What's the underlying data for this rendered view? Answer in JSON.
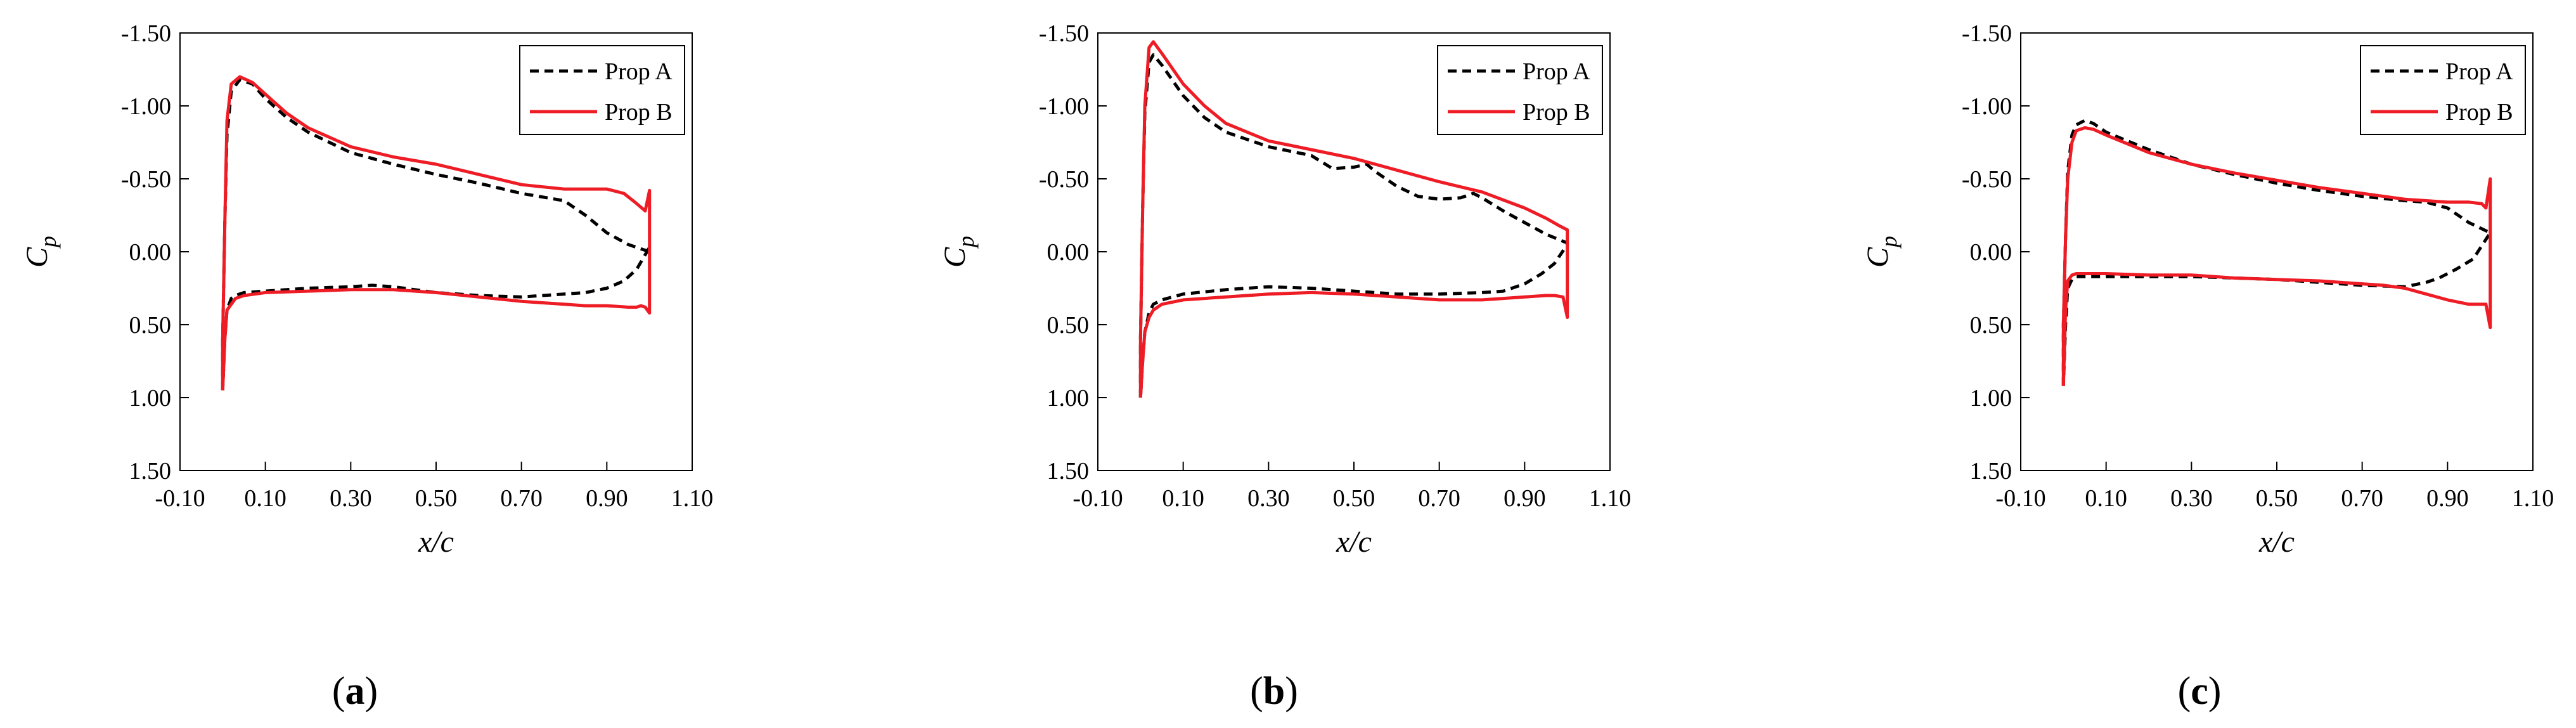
{
  "figure": {
    "series_colors": {
      "Prop A": "#000000",
      "Prop B": "#ee1c25"
    },
    "panel_labels": [
      "(a)",
      "(b)",
      "(c)"
    ]
  },
  "chart_data": [
    {
      "type": "line",
      "panel_label": "(a)",
      "xlabel": "x/c",
      "ylabel": "C_p",
      "ylabel_main": "C",
      "ylabel_sub": "p",
      "xlim": [
        -0.1,
        1.1
      ],
      "ylim": [
        1.5,
        -1.5
      ],
      "y_inverted": true,
      "x_ticks": [
        "-0.10",
        "0.10",
        "0.30",
        "0.50",
        "0.70",
        "0.90",
        "1.10"
      ],
      "x_tick_values": [
        -0.1,
        0.1,
        0.3,
        0.5,
        0.7,
        0.9,
        1.1
      ],
      "y_ticks": [
        "-1.50",
        "-1.00",
        "-0.50",
        "0.00",
        "0.50",
        "1.00",
        "1.50"
      ],
      "y_tick_values": [
        -1.5,
        -1.0,
        -0.5,
        0.0,
        0.5,
        1.0,
        1.5
      ],
      "legend_position": "top-right",
      "series": [
        {
          "name": "Prop A",
          "style": "dashed",
          "x": [
            0.0,
            0.0,
            0.005,
            0.01,
            0.02,
            0.04,
            0.07,
            0.1,
            0.15,
            0.2,
            0.3,
            0.4,
            0.5,
            0.6,
            0.7,
            0.8,
            0.85,
            0.9,
            0.95,
            1.0,
            1.0,
            0.97,
            0.94,
            0.9,
            0.85,
            0.8,
            0.7,
            0.6,
            0.5,
            0.4,
            0.35,
            0.3,
            0.2,
            0.15,
            0.1,
            0.05,
            0.03,
            0.02,
            0.01,
            0.005,
            0.0
          ],
          "y": [
            0.95,
            0.6,
            -0.2,
            -0.8,
            -1.1,
            -1.18,
            -1.15,
            -1.05,
            -0.92,
            -0.82,
            -0.68,
            -0.6,
            -0.53,
            -0.47,
            -0.4,
            -0.35,
            -0.25,
            -0.13,
            -0.05,
            0.0,
            -0.03,
            0.12,
            0.2,
            0.25,
            0.28,
            0.29,
            0.31,
            0.3,
            0.28,
            0.24,
            0.23,
            0.24,
            0.25,
            0.26,
            0.27,
            0.28,
            0.3,
            0.32,
            0.4,
            0.6,
            0.95
          ]
        },
        {
          "name": "Prop B",
          "style": "solid",
          "x": [
            0.0,
            0.0,
            0.005,
            0.01,
            0.02,
            0.04,
            0.07,
            0.1,
            0.15,
            0.2,
            0.3,
            0.4,
            0.5,
            0.6,
            0.7,
            0.8,
            0.85,
            0.9,
            0.94,
            0.97,
            0.99,
            1.0,
            1.0,
            0.99,
            0.98,
            0.97,
            0.95,
            0.9,
            0.85,
            0.8,
            0.7,
            0.6,
            0.5,
            0.4,
            0.3,
            0.2,
            0.1,
            0.05,
            0.03,
            0.01,
            0.005,
            0.0
          ],
          "y": [
            0.95,
            0.6,
            -0.2,
            -0.9,
            -1.15,
            -1.2,
            -1.16,
            -1.08,
            -0.95,
            -0.85,
            -0.72,
            -0.65,
            -0.6,
            -0.53,
            -0.46,
            -0.43,
            -0.43,
            -0.43,
            -0.4,
            -0.33,
            -0.28,
            -0.42,
            0.42,
            0.38,
            0.37,
            0.38,
            0.38,
            0.37,
            0.37,
            0.36,
            0.34,
            0.31,
            0.28,
            0.26,
            0.26,
            0.27,
            0.28,
            0.3,
            0.32,
            0.4,
            0.6,
            0.95
          ]
        }
      ]
    },
    {
      "type": "line",
      "panel_label": "(b)",
      "xlabel": "x/c",
      "ylabel": "C_p",
      "ylabel_main": "C",
      "ylabel_sub": "p",
      "xlim": [
        -0.1,
        1.1
      ],
      "ylim": [
        1.5,
        -1.5
      ],
      "y_inverted": true,
      "x_ticks": [
        "-0.10",
        "0.10",
        "0.30",
        "0.50",
        "0.70",
        "0.90",
        "1.10"
      ],
      "x_tick_values": [
        -0.1,
        0.1,
        0.3,
        0.5,
        0.7,
        0.9,
        1.1
      ],
      "y_ticks": [
        "-1.50",
        "-1.00",
        "-0.50",
        "0.00",
        "0.50",
        "1.00",
        "1.50"
      ],
      "y_tick_values": [
        -1.5,
        -1.0,
        -0.5,
        0.0,
        0.5,
        1.0,
        1.5
      ],
      "legend_position": "top-right",
      "series": [
        {
          "name": "Prop A",
          "style": "dashed",
          "x": [
            0.0,
            0.0,
            0.005,
            0.01,
            0.02,
            0.03,
            0.05,
            0.1,
            0.15,
            0.2,
            0.3,
            0.4,
            0.45,
            0.5,
            0.53,
            0.55,
            0.6,
            0.65,
            0.7,
            0.75,
            0.78,
            0.8,
            0.85,
            0.9,
            0.95,
            1.0,
            1.0,
            0.97,
            0.94,
            0.9,
            0.85,
            0.8,
            0.7,
            0.6,
            0.5,
            0.4,
            0.3,
            0.2,
            0.1,
            0.05,
            0.03,
            0.02,
            0.01,
            0.005,
            0.0
          ],
          "y": [
            1.0,
            0.6,
            -0.3,
            -0.95,
            -1.3,
            -1.35,
            -1.28,
            -1.07,
            -0.92,
            -0.82,
            -0.72,
            -0.66,
            -0.57,
            -0.58,
            -0.6,
            -0.55,
            -0.45,
            -0.38,
            -0.36,
            -0.37,
            -0.4,
            -0.37,
            -0.28,
            -0.2,
            -0.12,
            -0.06,
            -0.05,
            0.08,
            0.15,
            0.22,
            0.27,
            0.28,
            0.29,
            0.29,
            0.27,
            0.25,
            0.24,
            0.26,
            0.29,
            0.33,
            0.36,
            0.42,
            0.55,
            0.75,
            1.0
          ]
        },
        {
          "name": "Prop B",
          "style": "solid",
          "x": [
            0.0,
            0.0,
            0.005,
            0.01,
            0.02,
            0.03,
            0.05,
            0.1,
            0.15,
            0.2,
            0.3,
            0.4,
            0.5,
            0.6,
            0.7,
            0.8,
            0.9,
            0.95,
            0.98,
            1.0,
            1.0,
            0.99,
            0.97,
            0.95,
            0.9,
            0.85,
            0.8,
            0.7,
            0.6,
            0.5,
            0.4,
            0.3,
            0.2,
            0.1,
            0.05,
            0.03,
            0.02,
            0.01,
            0.005,
            0.0
          ],
          "y": [
            1.0,
            0.6,
            -0.3,
            -1.0,
            -1.4,
            -1.44,
            -1.36,
            -1.15,
            -1.0,
            -0.88,
            -0.76,
            -0.7,
            -0.64,
            -0.56,
            -0.48,
            -0.41,
            -0.3,
            -0.23,
            -0.18,
            -0.15,
            0.45,
            0.31,
            0.3,
            0.3,
            0.31,
            0.32,
            0.33,
            0.33,
            0.31,
            0.29,
            0.28,
            0.29,
            0.31,
            0.33,
            0.36,
            0.4,
            0.45,
            0.55,
            0.75,
            1.0
          ]
        }
      ]
    },
    {
      "type": "line",
      "panel_label": "(c)",
      "xlabel": "x/c",
      "ylabel": "C_p",
      "ylabel_main": "C",
      "ylabel_sub": "p",
      "xlim": [
        -0.1,
        1.1
      ],
      "ylim": [
        1.5,
        -1.5
      ],
      "y_inverted": true,
      "x_ticks": [
        "-0.10",
        "0.10",
        "0.30",
        "0.50",
        "0.70",
        "0.90",
        "1.10"
      ],
      "x_tick_values": [
        -0.1,
        0.1,
        0.3,
        0.5,
        0.7,
        0.9,
        1.1
      ],
      "y_ticks": [
        "-1.50",
        "-1.00",
        "-0.50",
        "0.00",
        "0.50",
        "1.00",
        "1.50"
      ],
      "y_tick_values": [
        -1.5,
        -1.0,
        -0.5,
        0.0,
        0.5,
        1.0,
        1.5
      ],
      "legend_position": "top-right",
      "series": [
        {
          "name": "Prop A",
          "style": "dashed",
          "x": [
            0.0,
            0.0,
            0.005,
            0.01,
            0.02,
            0.03,
            0.05,
            0.07,
            0.1,
            0.2,
            0.3,
            0.4,
            0.5,
            0.6,
            0.7,
            0.8,
            0.85,
            0.9,
            0.95,
            1.0,
            1.0,
            0.96,
            0.92,
            0.88,
            0.85,
            0.8,
            0.7,
            0.6,
            0.5,
            0.4,
            0.3,
            0.2,
            0.1,
            0.05,
            0.03,
            0.02,
            0.01,
            0.005,
            0.0
          ],
          "y": [
            0.92,
            0.5,
            -0.1,
            -0.55,
            -0.8,
            -0.87,
            -0.9,
            -0.88,
            -0.82,
            -0.7,
            -0.6,
            -0.53,
            -0.47,
            -0.42,
            -0.38,
            -0.35,
            -0.34,
            -0.3,
            -0.2,
            -0.13,
            -0.13,
            0.05,
            0.12,
            0.18,
            0.21,
            0.24,
            0.23,
            0.21,
            0.19,
            0.18,
            0.17,
            0.17,
            0.17,
            0.17,
            0.17,
            0.19,
            0.25,
            0.5,
            0.92
          ]
        },
        {
          "name": "Prop B",
          "style": "solid",
          "x": [
            0.0,
            0.0,
            0.005,
            0.01,
            0.02,
            0.03,
            0.05,
            0.07,
            0.1,
            0.2,
            0.3,
            0.4,
            0.5,
            0.6,
            0.7,
            0.8,
            0.85,
            0.9,
            0.95,
            0.98,
            0.99,
            1.0,
            1.0,
            0.99,
            0.97,
            0.95,
            0.9,
            0.85,
            0.8,
            0.75,
            0.7,
            0.6,
            0.5,
            0.4,
            0.3,
            0.2,
            0.1,
            0.05,
            0.03,
            0.02,
            0.01,
            0.005,
            0.0
          ],
          "y": [
            0.92,
            0.5,
            -0.1,
            -0.5,
            -0.75,
            -0.83,
            -0.85,
            -0.84,
            -0.8,
            -0.68,
            -0.6,
            -0.54,
            -0.49,
            -0.44,
            -0.4,
            -0.36,
            -0.35,
            -0.34,
            -0.34,
            -0.33,
            -0.3,
            -0.5,
            0.52,
            0.36,
            0.36,
            0.36,
            0.33,
            0.29,
            0.25,
            0.23,
            0.22,
            0.2,
            0.19,
            0.18,
            0.16,
            0.16,
            0.15,
            0.15,
            0.15,
            0.16,
            0.2,
            0.4,
            0.92
          ]
        }
      ]
    }
  ]
}
